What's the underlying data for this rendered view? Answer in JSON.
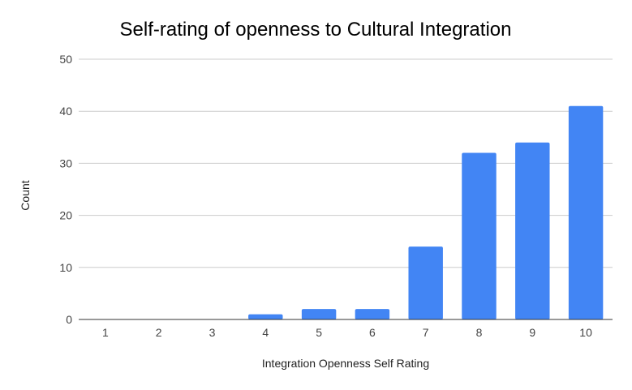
{
  "chart_data": {
    "type": "bar",
    "title": "Self-rating of openness to Cultural Integration",
    "xlabel": "Integration Openness Self Rating",
    "ylabel": "Count",
    "categories": [
      "1",
      "2",
      "3",
      "4",
      "5",
      "6",
      "7",
      "8",
      "9",
      "10"
    ],
    "values": [
      0,
      0,
      0,
      1,
      2,
      2,
      14,
      32,
      34,
      41
    ],
    "ylim": [
      0,
      50
    ],
    "yticks": [
      0,
      10,
      20,
      30,
      40,
      50
    ],
    "grid": true,
    "legend": "none",
    "bar_color": "#4285f4"
  }
}
